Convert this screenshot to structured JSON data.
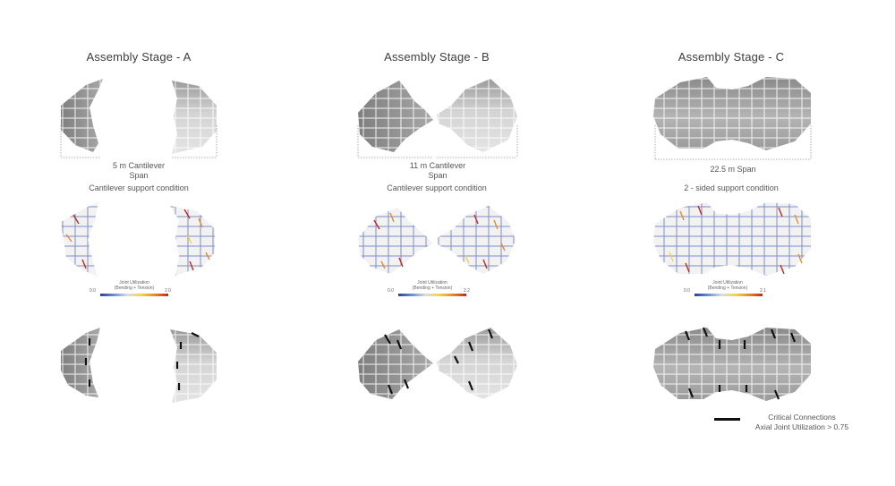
{
  "stages": [
    {
      "title": "Assembly Stage - A",
      "span_label_line1": "5 m Cantilever",
      "span_label_line2": "Span",
      "support": "Cantilever support condition",
      "colorbar": {
        "title_line1": "Joint Utilization",
        "title_line2": "(Bending + Tension)",
        "min": "0.0",
        "max": "2.0"
      }
    },
    {
      "title": "Assembly Stage - B",
      "span_label_line1": "11 m Cantilever",
      "span_label_line2": "Span",
      "support": "Cantilever support condition",
      "colorbar": {
        "title_line1": "Joint Utilization",
        "title_line2": "(Bending + Tension)",
        "min": "0.0",
        "max": "2.2"
      }
    },
    {
      "title": "Assembly Stage - C",
      "span_label_line1": "22.5 m Span",
      "span_label_line2": "",
      "support": "2 - sided support condition",
      "colorbar": {
        "title_line1": "Joint Utilization",
        "title_line2": "(Bending + Tension)",
        "min": "0.0",
        "max": "2.1"
      }
    }
  ],
  "legend": {
    "line1": "Critical Connections",
    "line2": "Axial Joint Utilization > 0.75"
  },
  "colors": {
    "dark_tile": "#8a8a8a",
    "light_tile": "#d8d8d8",
    "critical": "#111111",
    "low_util": "#2f3f9a",
    "high_util": "#c0291e"
  }
}
